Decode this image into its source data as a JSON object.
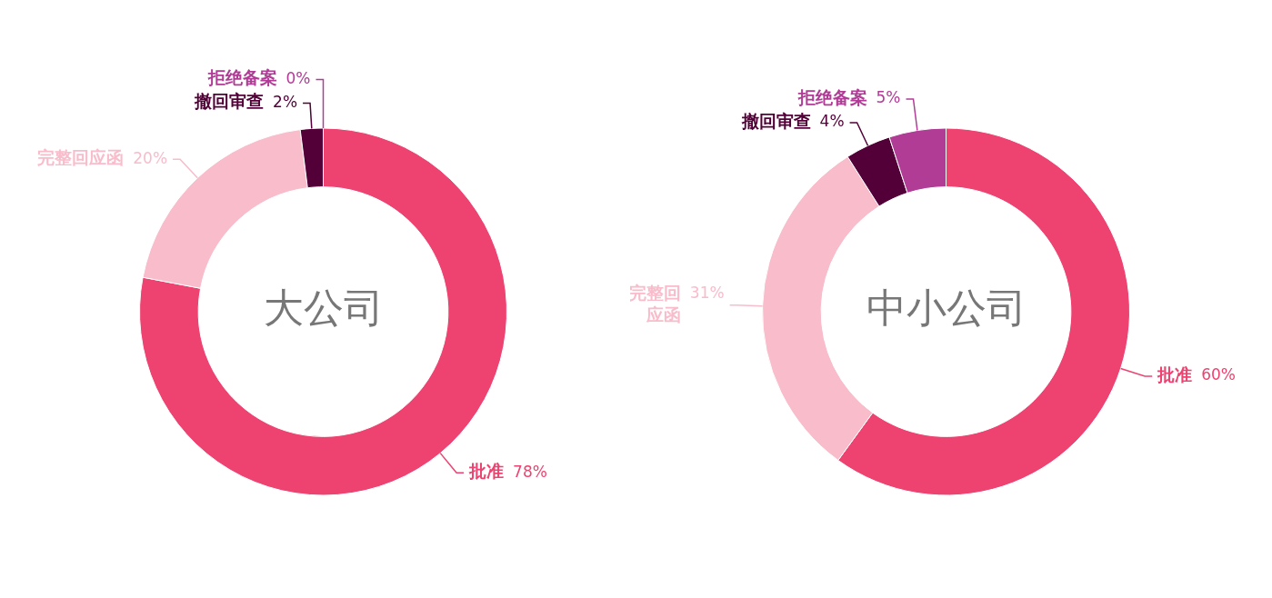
{
  "chart_data": [
    {
      "type": "donut",
      "title": "大公司",
      "categories": [
        "批准",
        "完整回应函",
        "撤回审查",
        "拒绝备案"
      ],
      "values": [
        78,
        20,
        2,
        0
      ],
      "value_labels": [
        "78%",
        "20%",
        "2%",
        "0%"
      ],
      "colors": [
        "#ee4270",
        "#f8bccb",
        "#520037",
        "#b03c96"
      ],
      "legend": false
    },
    {
      "type": "donut",
      "title": "中小公司",
      "categories": [
        "批准",
        "完整回应函",
        "撤回审查",
        "拒绝备案"
      ],
      "values": [
        60,
        31,
        4,
        5
      ],
      "value_labels": [
        "60%",
        "31%",
        "4%",
        "5%"
      ],
      "colors": [
        "#ee4270",
        "#f8bccb",
        "#520037",
        "#b03c96"
      ],
      "legend": false
    }
  ]
}
